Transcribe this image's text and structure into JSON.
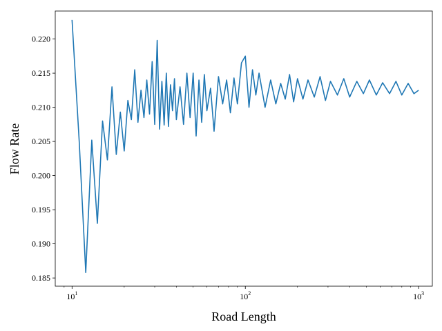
{
  "chart_data": {
    "type": "line",
    "title": "",
    "xlabel": "Road Length",
    "ylabel": "Flow Rate",
    "xscale": "log",
    "xlim": [
      8.0,
      1200
    ],
    "ylim": [
      0.1838,
      0.2241
    ],
    "grid": false,
    "color": "#1f77b4",
    "x_ticks": [
      {
        "base": "10",
        "exp": "1",
        "value": 10
      },
      {
        "base": "10",
        "exp": "2",
        "value": 100
      },
      {
        "base": "10",
        "exp": "3",
        "value": 1000
      }
    ],
    "y_ticks": [
      "0.185",
      "0.190",
      "0.195",
      "0.200",
      "0.205",
      "0.210",
      "0.215",
      "0.220"
    ],
    "y_tick_values": [
      0.185,
      0.19,
      0.195,
      0.2,
      0.205,
      0.21,
      0.215,
      0.22
    ],
    "series": [
      {
        "x": [
          10,
          11,
          12,
          13,
          14,
          15,
          16,
          17,
          18,
          19,
          20,
          21,
          22,
          23,
          24,
          25,
          26,
          27,
          28,
          29,
          30,
          31,
          32,
          33,
          34,
          35,
          36,
          37,
          38,
          39,
          40,
          42,
          44,
          46,
          48,
          50,
          52,
          54,
          56,
          58,
          60,
          63,
          66,
          70,
          74,
          78,
          82,
          86,
          90,
          95,
          100,
          105,
          110,
          115,
          120,
          130,
          140,
          150,
          160,
          170,
          180,
          190,
          200,
          215,
          230,
          250,
          270,
          290,
          310,
          340,
          370,
          400,
          440,
          480,
          520,
          570,
          620,
          680,
          740,
          800,
          870,
          940,
          1000
        ],
        "y": [
          0.2228,
          0.205,
          0.1858,
          0.2052,
          0.193,
          0.208,
          0.2023,
          0.213,
          0.2031,
          0.2093,
          0.2036,
          0.211,
          0.2082,
          0.2155,
          0.2078,
          0.2125,
          0.2085,
          0.214,
          0.209,
          0.2167,
          0.2075,
          0.2198,
          0.2068,
          0.2138,
          0.2074,
          0.215,
          0.2072,
          0.2133,
          0.2095,
          0.2142,
          0.2082,
          0.213,
          0.2075,
          0.215,
          0.2085,
          0.215,
          0.2058,
          0.214,
          0.2078,
          0.2148,
          0.2095,
          0.2128,
          0.2065,
          0.2145,
          0.2105,
          0.214,
          0.2092,
          0.2143,
          0.2105,
          0.2165,
          0.2175,
          0.21,
          0.2155,
          0.2118,
          0.215,
          0.21,
          0.214,
          0.2105,
          0.2135,
          0.2112,
          0.2148,
          0.2108,
          0.2142,
          0.2112,
          0.214,
          0.2115,
          0.2145,
          0.211,
          0.2138,
          0.2118,
          0.2142,
          0.2115,
          0.2138,
          0.212,
          0.214,
          0.2118,
          0.2136,
          0.212,
          0.2138,
          0.2118,
          0.2135,
          0.212,
          0.2125
        ]
      }
    ]
  }
}
